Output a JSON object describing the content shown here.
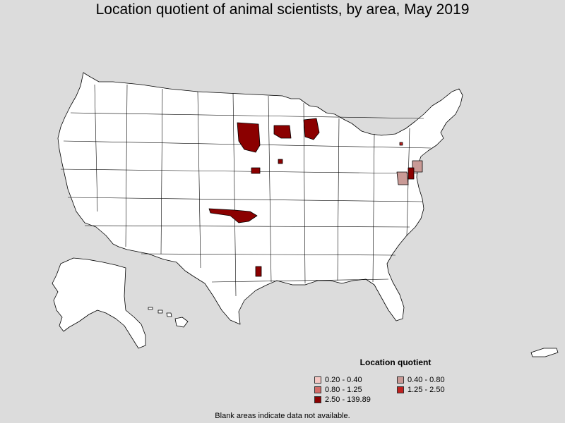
{
  "title": "Location quotient of animal scientists, by area, May 2019",
  "legend": {
    "title": "Location quotient",
    "items": [
      {
        "label": "0.20 - 0.40",
        "color": "#f4c7c3"
      },
      {
        "label": "0.40 - 0.80",
        "color": "#c99a96"
      },
      {
        "label": "0.80 - 1.25",
        "color": "#d36b67"
      },
      {
        "label": "1.25 - 2.50",
        "color": "#c0211f"
      },
      {
        "label": "2.50 - 139.89",
        "color": "#8b0000"
      }
    ]
  },
  "footnote": "Blank areas indicate data not available.",
  "colors": {
    "background": "#dcdcdc",
    "land": "#ffffff",
    "border": "#000000"
  }
}
